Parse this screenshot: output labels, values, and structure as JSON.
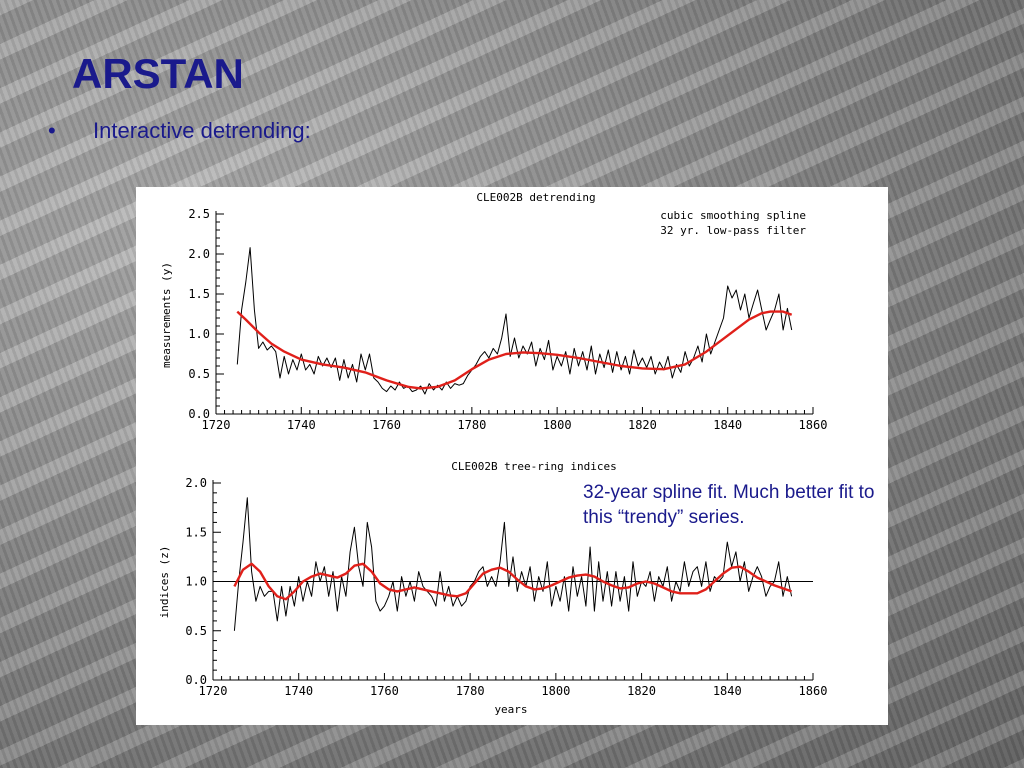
{
  "slide": {
    "title": "ARSTAN",
    "bullet": "•",
    "bullet_text": "Interactive detrending:",
    "note": "32-year spline fit. Much better fit to this “trendy” series."
  },
  "colors": {
    "title": "#1a1a8c",
    "series": "#000000",
    "smooth": "#e0201a"
  },
  "chart_data": [
    {
      "type": "line",
      "title": "CLE002B detrending",
      "legend": [
        "cubic smoothing spline",
        "32 yr. low-pass filter"
      ],
      "legend_position": "top-right",
      "xlabel": "",
      "ylabel": "measurements (y)",
      "xlim": [
        1720,
        1860
      ],
      "ylim": [
        0.0,
        2.5
      ],
      "xticks": [
        1720,
        1740,
        1760,
        1780,
        1800,
        1820,
        1840,
        1860
      ],
      "yticks": [
        0.0,
        0.5,
        1.0,
        1.5,
        2.0,
        2.5
      ],
      "ytick_labels": [
        "0.0",
        "0.5",
        "1.0",
        "1.5",
        "2.0",
        "2.5"
      ],
      "series": [
        {
          "color": "#000000",
          "x": [
            1725,
            1726,
            1727,
            1728,
            1729,
            1730,
            1731,
            1732,
            1733,
            1734,
            1735,
            1736,
            1737,
            1738,
            1739,
            1740,
            1741,
            1742,
            1743,
            1744,
            1745,
            1746,
            1747,
            1748,
            1749,
            1750,
            1751,
            1752,
            1753,
            1754,
            1755,
            1756,
            1757,
            1758,
            1759,
            1760,
            1761,
            1762,
            1763,
            1764,
            1765,
            1766,
            1767,
            1768,
            1769,
            1770,
            1771,
            1772,
            1773,
            1774,
            1775,
            1776,
            1777,
            1778,
            1779,
            1780,
            1781,
            1782,
            1783,
            1784,
            1785,
            1786,
            1787,
            1788,
            1789,
            1790,
            1791,
            1792,
            1793,
            1794,
            1795,
            1796,
            1797,
            1798,
            1799,
            1800,
            1801,
            1802,
            1803,
            1804,
            1805,
            1806,
            1807,
            1808,
            1809,
            1810,
            1811,
            1812,
            1813,
            1814,
            1815,
            1816,
            1817,
            1818,
            1819,
            1820,
            1821,
            1822,
            1823,
            1824,
            1825,
            1826,
            1827,
            1828,
            1829,
            1830,
            1831,
            1832,
            1833,
            1834,
            1835,
            1836,
            1837,
            1838,
            1839,
            1840,
            1841,
            1842,
            1843,
            1844,
            1845,
            1846,
            1847,
            1848,
            1849,
            1850,
            1851,
            1852,
            1853,
            1854,
            1855
          ],
          "y": [
            0.62,
            1.3,
            1.65,
            2.08,
            1.3,
            0.82,
            0.9,
            0.8,
            0.85,
            0.78,
            0.45,
            0.72,
            0.5,
            0.68,
            0.55,
            0.75,
            0.55,
            0.62,
            0.5,
            0.72,
            0.6,
            0.7,
            0.58,
            0.7,
            0.42,
            0.68,
            0.45,
            0.62,
            0.4,
            0.75,
            0.55,
            0.75,
            0.45,
            0.4,
            0.32,
            0.28,
            0.35,
            0.3,
            0.4,
            0.32,
            0.35,
            0.28,
            0.3,
            0.35,
            0.25,
            0.38,
            0.3,
            0.36,
            0.3,
            0.4,
            0.32,
            0.38,
            0.36,
            0.38,
            0.48,
            0.55,
            0.62,
            0.72,
            0.78,
            0.7,
            0.82,
            0.75,
            0.95,
            1.25,
            0.72,
            0.95,
            0.7,
            0.85,
            0.75,
            0.9,
            0.6,
            0.82,
            0.68,
            0.92,
            0.55,
            0.72,
            0.6,
            0.78,
            0.5,
            0.82,
            0.6,
            0.78,
            0.55,
            0.85,
            0.5,
            0.75,
            0.58,
            0.8,
            0.52,
            0.78,
            0.55,
            0.72,
            0.5,
            0.8,
            0.6,
            0.7,
            0.58,
            0.72,
            0.5,
            0.65,
            0.55,
            0.72,
            0.45,
            0.62,
            0.52,
            0.78,
            0.6,
            0.7,
            0.85,
            0.65,
            1.0,
            0.75,
            0.9,
            1.05,
            1.2,
            1.6,
            1.45,
            1.55,
            1.3,
            1.5,
            1.2,
            1.38,
            1.55,
            1.3,
            1.05,
            1.18,
            1.3,
            1.5,
            1.05,
            1.32,
            1.05
          ]
        },
        {
          "color": "#e0201a",
          "x": [
            1725,
            1727,
            1730,
            1733,
            1736,
            1740,
            1745,
            1750,
            1755,
            1760,
            1765,
            1768,
            1772,
            1776,
            1780,
            1784,
            1788,
            1792,
            1796,
            1800,
            1805,
            1810,
            1815,
            1820,
            1825,
            1830,
            1835,
            1840,
            1845,
            1848,
            1850,
            1853,
            1855
          ],
          "y": [
            1.28,
            1.18,
            1.02,
            0.88,
            0.78,
            0.68,
            0.62,
            0.58,
            0.52,
            0.42,
            0.34,
            0.32,
            0.34,
            0.42,
            0.56,
            0.68,
            0.75,
            0.77,
            0.76,
            0.74,
            0.7,
            0.65,
            0.6,
            0.57,
            0.56,
            0.62,
            0.78,
            0.98,
            1.18,
            1.26,
            1.28,
            1.28,
            1.24
          ]
        }
      ]
    },
    {
      "type": "line",
      "title": "CLE002B tree-ring indices",
      "xlabel": "years",
      "ylabel": "indices (z)",
      "xlim": [
        1720,
        1860
      ],
      "ylim": [
        0.0,
        2.0
      ],
      "xticks": [
        1720,
        1740,
        1760,
        1780,
        1800,
        1820,
        1840,
        1860
      ],
      "yticks": [
        0.0,
        0.5,
        1.0,
        1.5,
        2.0
      ],
      "ytick_labels": [
        "0.0",
        "0.5",
        "1.0",
        "1.5",
        "2.0"
      ],
      "reference_line": 1.0,
      "series": [
        {
          "color": "#000000",
          "x": [
            1725,
            1726,
            1727,
            1728,
            1729,
            1730,
            1731,
            1732,
            1733,
            1734,
            1735,
            1736,
            1737,
            1738,
            1739,
            1740,
            1741,
            1742,
            1743,
            1744,
            1745,
            1746,
            1747,
            1748,
            1749,
            1750,
            1751,
            1752,
            1753,
            1754,
            1755,
            1756,
            1757,
            1758,
            1759,
            1760,
            1761,
            1762,
            1763,
            1764,
            1765,
            1766,
            1767,
            1768,
            1769,
            1770,
            1771,
            1772,
            1773,
            1774,
            1775,
            1776,
            1777,
            1778,
            1779,
            1780,
            1781,
            1782,
            1783,
            1784,
            1785,
            1786,
            1787,
            1788,
            1789,
            1790,
            1791,
            1792,
            1793,
            1794,
            1795,
            1796,
            1797,
            1798,
            1799,
            1800,
            1801,
            1802,
            1803,
            1804,
            1805,
            1806,
            1807,
            1808,
            1809,
            1810,
            1811,
            1812,
            1813,
            1814,
            1815,
            1816,
            1817,
            1818,
            1819,
            1820,
            1821,
            1822,
            1823,
            1824,
            1825,
            1826,
            1827,
            1828,
            1829,
            1830,
            1831,
            1832,
            1833,
            1834,
            1835,
            1836,
            1837,
            1838,
            1839,
            1840,
            1841,
            1842,
            1843,
            1844,
            1845,
            1846,
            1847,
            1848,
            1849,
            1850,
            1851,
            1852,
            1853,
            1854,
            1855
          ],
          "y": [
            0.5,
            1.0,
            1.4,
            1.85,
            1.1,
            0.8,
            0.95,
            0.85,
            0.9,
            0.9,
            0.6,
            0.95,
            0.65,
            0.95,
            0.75,
            1.05,
            0.8,
            1.0,
            0.85,
            1.2,
            1.0,
            1.15,
            0.85,
            1.1,
            0.7,
            1.05,
            0.85,
            1.3,
            1.55,
            1.15,
            0.95,
            1.6,
            1.35,
            0.8,
            0.7,
            0.75,
            0.85,
            1.0,
            0.7,
            1.05,
            0.85,
            1.0,
            0.8,
            1.1,
            0.95,
            0.9,
            0.85,
            0.75,
            1.1,
            0.8,
            0.95,
            0.75,
            0.85,
            0.75,
            0.8,
            0.95,
            1.0,
            1.1,
            1.15,
            0.95,
            1.05,
            0.95,
            1.2,
            1.6,
            0.95,
            1.25,
            0.9,
            1.1,
            0.95,
            1.15,
            0.8,
            1.05,
            0.9,
            1.2,
            0.75,
            0.95,
            0.8,
            1.05,
            0.7,
            1.15,
            0.85,
            1.05,
            0.75,
            1.35,
            0.7,
            1.2,
            0.8,
            1.1,
            0.75,
            1.1,
            0.8,
            1.05,
            0.7,
            1.2,
            0.85,
            1.0,
            0.95,
            1.1,
            0.8,
            1.05,
            0.95,
            1.15,
            0.8,
            1.0,
            0.9,
            1.2,
            0.95,
            1.1,
            1.15,
            0.95,
            1.2,
            0.9,
            1.05,
            1.0,
            1.05,
            1.4,
            1.15,
            1.3,
            1.0,
            1.2,
            0.9,
            1.05,
            1.15,
            1.05,
            0.85,
            0.95,
            1.0,
            1.2,
            0.85,
            1.05,
            0.85
          ]
        },
        {
          "color": "#e0201a",
          "x": [
            1725,
            1727,
            1729,
            1731,
            1733,
            1735,
            1737,
            1739,
            1741,
            1743,
            1745,
            1747,
            1749,
            1751,
            1753,
            1755,
            1757,
            1759,
            1761,
            1763,
            1765,
            1767,
            1769,
            1771,
            1773,
            1775,
            1777,
            1779,
            1781,
            1783,
            1785,
            1787,
            1789,
            1791,
            1793,
            1795,
            1797,
            1799,
            1801,
            1803,
            1805,
            1807,
            1809,
            1811,
            1813,
            1815,
            1817,
            1819,
            1821,
            1823,
            1825,
            1827,
            1829,
            1831,
            1833,
            1835,
            1837,
            1839,
            1841,
            1843,
            1845,
            1847,
            1849,
            1851,
            1853,
            1855
          ],
          "y": [
            0.95,
            1.12,
            1.18,
            1.1,
            0.95,
            0.85,
            0.82,
            0.9,
            1.0,
            1.05,
            1.08,
            1.06,
            1.04,
            1.08,
            1.16,
            1.18,
            1.1,
            0.98,
            0.92,
            0.9,
            0.92,
            0.94,
            0.92,
            0.9,
            0.88,
            0.86,
            0.85,
            0.88,
            0.98,
            1.08,
            1.12,
            1.14,
            1.1,
            1.02,
            0.95,
            0.92,
            0.93,
            0.96,
            1.0,
            1.04,
            1.06,
            1.07,
            1.05,
            1.0,
            0.96,
            0.93,
            0.94,
            0.98,
            1.0,
            0.98,
            0.94,
            0.9,
            0.88,
            0.88,
            0.88,
            0.92,
            1.0,
            1.08,
            1.14,
            1.15,
            1.1,
            1.04,
            1.0,
            0.96,
            0.93,
            0.9
          ]
        }
      ]
    }
  ]
}
